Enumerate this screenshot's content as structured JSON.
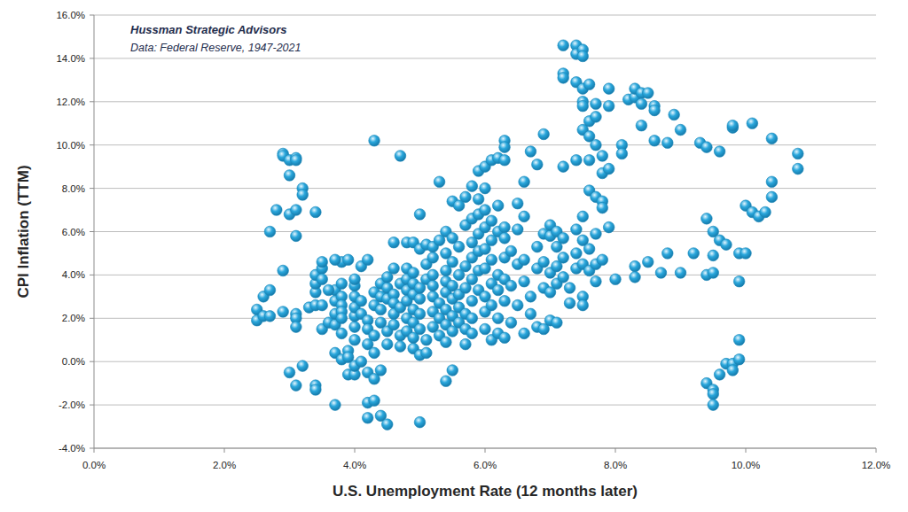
{
  "chart_data": {
    "type": "scatter",
    "title": "Hussman Strategic Advisors",
    "subtitle": "Data: Federal Reserve, 1947-2021",
    "x_label": "U.S. Unemployment Rate (12 months later)",
    "y_label": "CPI Inflation (TTM)",
    "color": "#2aa7dc",
    "marker": "circle",
    "grid": "y",
    "xlim": [
      0,
      12
    ],
    "ylim": [
      -4,
      16
    ],
    "xticks": [
      {
        "value": 0,
        "label": "0.0%"
      },
      {
        "value": 2,
        "label": "2.0%"
      },
      {
        "value": 4,
        "label": "4.0%"
      },
      {
        "value": 6,
        "label": "6.0%"
      },
      {
        "value": 8,
        "label": "8.0%"
      },
      {
        "value": 10,
        "label": "10.0%"
      },
      {
        "value": 12,
        "label": "12.0%"
      }
    ],
    "yticks": [
      {
        "value": -4,
        "label": "-4.0%"
      },
      {
        "value": -2,
        "label": "-2.0%"
      },
      {
        "value": 0,
        "label": "0.0%"
      },
      {
        "value": 2,
        "label": "2.0%"
      },
      {
        "value": 4,
        "label": "4.0%"
      },
      {
        "value": 6,
        "label": "6.0%"
      },
      {
        "value": 8,
        "label": "8.0%"
      },
      {
        "value": 10,
        "label": "10.0%"
      },
      {
        "value": 12,
        "label": "12.0%"
      },
      {
        "value": 14,
        "label": "14.0%"
      },
      {
        "value": 16,
        "label": "16.0%"
      }
    ],
    "x": [
      2.9,
      2.9,
      3.0,
      3.1,
      3.1,
      3.0,
      3.2,
      3.2,
      2.8,
      3.0,
      3.1,
      3.4,
      2.7,
      3.1,
      2.9,
      2.6,
      2.7,
      2.5,
      2.5,
      2.6,
      2.7,
      2.9,
      3.1,
      3.1,
      3.1,
      3.0,
      3.2,
      3.1,
      3.4,
      3.4,
      3.3,
      3.4,
      3.5,
      3.4,
      3.4,
      3.4,
      3.5,
      3.5,
      3.5,
      3.5,
      3.6,
      3.7,
      3.7,
      3.7,
      3.7,
      3.8,
      3.8,
      3.7,
      3.9,
      3.8,
      3.8,
      3.8,
      3.8,
      3.8,
      3.7,
      3.8,
      3.7,
      3.9,
      3.9,
      3.9,
      4.0,
      4.0,
      4.1,
      4.0,
      4.0,
      4.0,
      4.0,
      4.0,
      4.0,
      4.0,
      4.1,
      4.2,
      4.1,
      4.1,
      4.2,
      4.2,
      4.2,
      4.2,
      4.3,
      4.2,
      4.3,
      4.2,
      4.4,
      4.5,
      4.4,
      4.3,
      4.3,
      4.3,
      4.3,
      4.3,
      4.4,
      4.4,
      4.4,
      4.4,
      4.5,
      4.5,
      4.5,
      4.5,
      4.5,
      4.6,
      4.6,
      4.7,
      4.6,
      4.6,
      4.6,
      4.6,
      4.7,
      4.7,
      4.7,
      4.7,
      4.8,
      4.8,
      4.8,
      4.8,
      4.8,
      4.8,
      4.8,
      4.9,
      4.9,
      4.9,
      4.9,
      4.9,
      4.9,
      4.9,
      4.9,
      5.0,
      5.0,
      5.0,
      5.0,
      5.0,
      5.0,
      5.0,
      5.0,
      5.1,
      5.1,
      5.1,
      5.1,
      5.1,
      5.2,
      5.2,
      5.2,
      5.2,
      5.2,
      5.2,
      5.2,
      5.3,
      5.3,
      5.3,
      5.3,
      5.3,
      5.4,
      5.4,
      5.4,
      5.4,
      5.4,
      5.4,
      5.4,
      5.4,
      5.4,
      5.5,
      5.5,
      5.5,
      5.5,
      5.5,
      5.5,
      5.5,
      5.5,
      5.6,
      5.6,
      5.6,
      5.6,
      5.6,
      5.6,
      5.7,
      5.7,
      5.7,
      5.7,
      5.7,
      5.7,
      5.7,
      5.8,
      5.8,
      5.8,
      5.8,
      5.8,
      5.8,
      5.8,
      5.8,
      5.9,
      5.9,
      5.9,
      5.9,
      5.9,
      5.9,
      5.9,
      6.0,
      6.0,
      6.0,
      6.0,
      6.0,
      6.0,
      6.0,
      6.0,
      6.0,
      6.1,
      6.1,
      6.1,
      6.1,
      6.1,
      6.1,
      6.1,
      6.2,
      6.2,
      6.2,
      6.2,
      6.2,
      6.2,
      6.2,
      6.3,
      6.3,
      6.3,
      6.3,
      6.3,
      6.3,
      6.3,
      6.3,
      6.3,
      6.4,
      6.4,
      6.4,
      6.5,
      6.5,
      6.5,
      6.5,
      6.6,
      6.6,
      6.6,
      6.6,
      6.6,
      6.7,
      6.7,
      6.7,
      6.8,
      6.8,
      6.8,
      6.8,
      6.9,
      6.9,
      6.9,
      6.9,
      6.9,
      7.0,
      7.0,
      7.0,
      7.0,
      7.0,
      7.1,
      7.1,
      7.1,
      7.1,
      7.1,
      7.2,
      7.2,
      7.2,
      7.2,
      7.2,
      7.2,
      7.2,
      7.3,
      7.3,
      7.4,
      7.4,
      7.4,
      7.4,
      7.4,
      7.4,
      7.4,
      7.5,
      7.5,
      7.5,
      7.5,
      7.5,
      7.5,
      7.5,
      7.5,
      7.5,
      7.5,
      7.5,
      7.6,
      7.6,
      7.6,
      7.6,
      7.6,
      7.6,
      7.6,
      7.7,
      7.7,
      7.7,
      7.7,
      7.7,
      7.7,
      7.7,
      7.8,
      7.8,
      7.8,
      7.8,
      7.8,
      7.9,
      7.9,
      7.9,
      7.9,
      8.0,
      8.1,
      8.1,
      8.2,
      8.3,
      8.3,
      8.4,
      8.4,
      8.3,
      8.3,
      8.4,
      8.5,
      8.5,
      8.6,
      8.6,
      8.6,
      8.7,
      8.8,
      8.8,
      8.9,
      9.0,
      9.0,
      9.2,
      9.3,
      9.4,
      9.4,
      9.4,
      9.5,
      9.5,
      9.5,
      9.4,
      9.5,
      9.5,
      9.5,
      9.6,
      9.6,
      9.6,
      9.7,
      9.7,
      9.8,
      9.8,
      9.8,
      9.8,
      9.9,
      9.9,
      9.9,
      9.9,
      10.0,
      10.0,
      10.1,
      10.1,
      10.2,
      10.3,
      10.4,
      10.4,
      10.4,
      10.8,
      10.8,
      3.6
    ],
    "values": [
      9.6,
      9.5,
      9.3,
      9.4,
      9.3,
      8.6,
      8.0,
      7.7,
      7.0,
      6.8,
      7.0,
      6.9,
      6.0,
      5.8,
      4.2,
      3.0,
      3.3,
      2.4,
      1.9,
      2.1,
      2.1,
      2.3,
      2.2,
      2.0,
      1.6,
      -0.5,
      -0.2,
      -1.1,
      -1.1,
      -1.3,
      2.5,
      2.6,
      2.6,
      3.2,
      3.6,
      4.0,
      4.3,
      4.6,
      3.8,
      1.5,
      1.8,
      1.7,
      2.2,
      2.8,
      3.3,
      3.6,
      4.6,
      4.7,
      4.7,
      3.0,
      2.6,
      2.3,
      2.0,
      1.3,
      0.4,
      0.1,
      -2.0,
      0.5,
      0.2,
      -0.6,
      -0.6,
      -0.2,
      0.0,
      1.0,
      1.6,
      2.1,
      2.5,
      3.0,
      3.5,
      3.8,
      4.4,
      4.7,
      2.8,
      2.2,
      1.9,
      1.5,
      0.8,
      -0.5,
      -0.8,
      -1.9,
      -1.8,
      -2.6,
      -2.5,
      -2.9,
      -0.4,
      0.4,
      1.2,
      2.6,
      3.2,
      10.2,
      3.6,
      3.0,
      2.4,
      1.8,
      1.4,
      0.8,
      2.9,
      3.4,
      3.9,
      4.3,
      5.5,
      9.5,
      3.1,
      2.7,
      2.2,
      1.7,
      1.2,
      0.7,
      2.5,
      3.6,
      5.5,
      4.3,
      3.8,
      3.3,
      2.8,
      2.0,
      1.4,
      0.6,
      1.1,
      1.8,
      2.4,
      3.1,
      3.6,
      4.1,
      5.5,
      5.2,
      6.8,
      -2.8,
      0.3,
      1.5,
      2.2,
      2.9,
      3.4,
      3.8,
      4.5,
      5.4,
      1.0,
      0.4,
      1.6,
      2.3,
      3.0,
      3.5,
      4.0,
      4.8,
      5.3,
      5.6,
      8.3,
      2.7,
      2.0,
      1.2,
      -0.9,
      0.9,
      1.7,
      2.4,
      3.2,
      3.7,
      4.2,
      5.0,
      6.0,
      5.7,
      7.4,
      -0.4,
      1.4,
      2.1,
      2.9,
      3.5,
      4.6,
      5.3,
      7.2,
      1.8,
      2.5,
      3.1,
      4.0,
      4.4,
      7.6,
      6.3,
      0.8,
      1.5,
      2.2,
      3.4,
      3.8,
      4.8,
      5.5,
      6.6,
      8.1,
      1.3,
      2.0,
      2.8,
      3.3,
      4.2,
      5.1,
      5.9,
      6.8,
      7.5,
      8.8,
      8.0,
      9.0,
      7.0,
      6.2,
      5.2,
      4.3,
      3.0,
      2.3,
      1.5,
      1.0,
      2.6,
      3.6,
      4.7,
      5.6,
      6.5,
      9.3,
      9.4,
      7.2,
      6.0,
      4.0,
      3.3,
      2.0,
      1.3,
      10.2,
      9.9,
      9.3,
      6.2,
      5.7,
      4.8,
      3.8,
      2.8,
      1.1,
      5.1,
      3.5,
      1.8,
      6.1,
      7.3,
      4.5,
      2.6,
      6.7,
      8.3,
      4.7,
      3.7,
      1.3,
      9.7,
      3.0,
      2.2,
      4.3,
      5.3,
      9.1,
      1.6,
      10.5,
      5.9,
      4.6,
      3.4,
      1.5,
      5.8,
      4.1,
      3.2,
      1.9,
      6.3,
      6.0,
      5.3,
      4.4,
      3.6,
      1.8,
      14.6,
      13.3,
      13.1,
      9.0,
      5.7,
      4.8,
      3.9,
      3.4,
      2.7,
      14.6,
      14.2,
      12.9,
      9.3,
      6.1,
      5.0,
      4.3,
      14.4,
      14.1,
      12.6,
      12.0,
      11.8,
      10.7,
      6.7,
      5.6,
      4.5,
      3.0,
      2.6,
      12.8,
      11.1,
      10.4,
      9.3,
      7.9,
      5.2,
      4.2,
      11.9,
      11.3,
      10.0,
      7.6,
      5.9,
      4.5,
      3.7,
      9.5,
      8.7,
      7.4,
      7.1,
      4.7,
      12.6,
      11.8,
      8.9,
      6.2,
      3.8,
      10.0,
      9.6,
      12.1,
      12.2,
      12.6,
      12.4,
      11.9,
      4.4,
      3.9,
      10.9,
      12.4,
      4.6,
      11.8,
      11.6,
      10.2,
      4.1,
      10.1,
      5.0,
      11.4,
      10.7,
      4.1,
      5.0,
      10.1,
      9.9,
      6.6,
      4.0,
      6.0,
      4.9,
      4.1,
      -1.0,
      -1.3,
      -1.5,
      -2.0,
      9.7,
      5.6,
      -0.6,
      5.4,
      -0.1,
      10.8,
      10.9,
      -0.1,
      -0.4,
      0.1,
      1.0,
      3.7,
      5.0,
      5.0,
      7.2,
      6.9,
      11.0,
      6.7,
      6.9,
      7.6,
      8.3,
      10.3,
      9.6,
      8.9,
      3.3
    ]
  }
}
